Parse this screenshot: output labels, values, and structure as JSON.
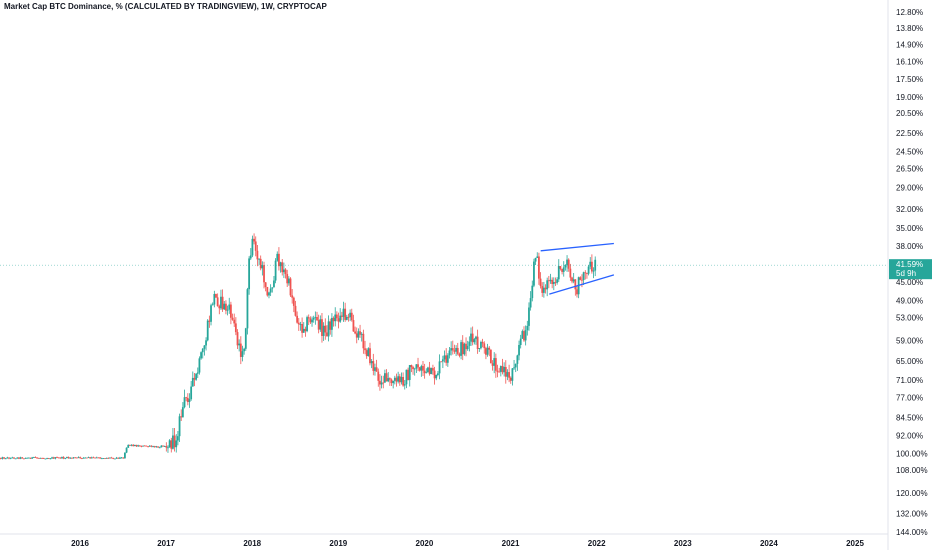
{
  "chart_data": {
    "type": "candlestick",
    "title": "Market Cap BTC Dominance, % (CALCULATED BY TRADINGVIEW), 1W, CRYPTOCAP",
    "scale": "log-inverted",
    "x_ticks": [
      "2016",
      "2017",
      "2018",
      "2019",
      "2020",
      "2021",
      "2022",
      "2023",
      "2024",
      "2025"
    ],
    "y_ticks": [
      "12.80%",
      "13.80%",
      "14.90%",
      "16.10%",
      "17.50%",
      "19.00%",
      "20.50%",
      "22.50%",
      "24.50%",
      "26.50%",
      "29.00%",
      "32.00%",
      "35.00%",
      "38.00%",
      "45.00%",
      "49.00%",
      "53.00%",
      "59.00%",
      "65.00%",
      "71.00%",
      "77.00%",
      "84.50%",
      "92.00%",
      "100.00%",
      "108.00%",
      "120.00%",
      "132.00%",
      "144.00%"
    ],
    "y_values": [
      12.8,
      13.8,
      14.9,
      16.1,
      17.5,
      19.0,
      20.5,
      22.5,
      24.5,
      26.5,
      29.0,
      32.0,
      35.0,
      38.0,
      45.0,
      49.0,
      53.0,
      59.0,
      65.0,
      71.0,
      77.0,
      84.5,
      92.0,
      100.0,
      108.0,
      120.0,
      132.0,
      144.0
    ],
    "price_series": [
      [
        2015.3,
        102
      ],
      [
        2016.0,
        102
      ],
      [
        2016.5,
        102
      ],
      [
        2016.55,
        96
      ],
      [
        2016.9,
        97
      ],
      [
        2017.1,
        95
      ],
      [
        2017.2,
        80
      ],
      [
        2017.35,
        70
      ],
      [
        2017.45,
        60
      ],
      [
        2017.55,
        48
      ],
      [
        2017.75,
        52
      ],
      [
        2017.9,
        65
      ],
      [
        2017.97,
        40
      ],
      [
        2018.0,
        37
      ],
      [
        2018.1,
        42
      ],
      [
        2018.2,
        48
      ],
      [
        2018.3,
        40
      ],
      [
        2018.45,
        47
      ],
      [
        2018.55,
        56
      ],
      [
        2018.7,
        53
      ],
      [
        2018.85,
        57
      ],
      [
        2018.95,
        53
      ],
      [
        2019.1,
        52
      ],
      [
        2019.2,
        56
      ],
      [
        2019.3,
        60
      ],
      [
        2019.45,
        70
      ],
      [
        2019.6,
        72
      ],
      [
        2019.75,
        71
      ],
      [
        2019.9,
        66
      ],
      [
        2020.1,
        70
      ],
      [
        2020.25,
        64
      ],
      [
        2020.4,
        62
      ],
      [
        2020.55,
        59
      ],
      [
        2020.7,
        62
      ],
      [
        2020.9,
        68
      ],
      [
        2021.0,
        70
      ],
      [
        2021.1,
        60
      ],
      [
        2021.2,
        55
      ],
      [
        2021.3,
        38
      ],
      [
        2021.35,
        47
      ],
      [
        2021.5,
        45
      ],
      [
        2021.65,
        40
      ],
      [
        2021.75,
        47
      ],
      [
        2021.9,
        42
      ],
      [
        2022.0,
        41
      ]
    ],
    "channel_lines": [
      {
        "from": [
          2021.35,
          38.9
        ],
        "to": [
          2022.2,
          37.6
        ]
      },
      {
        "from": [
          2021.45,
          47.6
        ],
        "to": [
          2022.2,
          43.5
        ]
      }
    ],
    "last_value_line": 41.59,
    "current_value_badge": {
      "value": "41.59%",
      "countdown": "5d 9h"
    },
    "colors": {
      "up": "#26a69a",
      "down": "#ef5350",
      "channel": "#2962ff",
      "badge": "#26a69a"
    },
    "grid": false
  }
}
